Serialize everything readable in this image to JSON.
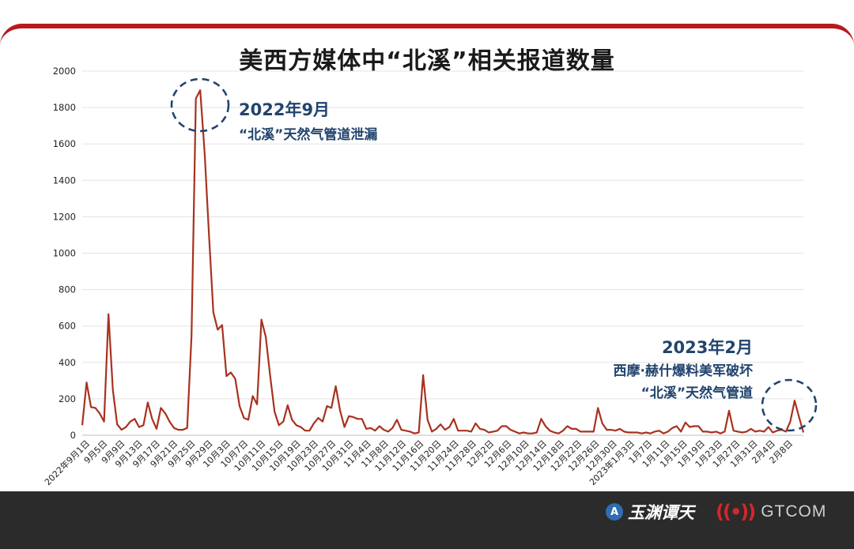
{
  "header": {
    "title": "美西方媒体中“北溪”相关报道数量"
  },
  "annotations": {
    "a1_line1": "2022年9月",
    "a1_line2": "“北溪”天然气管道泄漏",
    "a2_line1": "2023年2月",
    "a2_line2": "西摩·赫什爆料美军破坏",
    "a2_line3": "“北溪”天然气管道"
  },
  "footer": {
    "logo1_mark": "A",
    "logo1_text": "玉渊谭天",
    "logo2_mark": "((•))",
    "logo2_text": "GTCOM"
  },
  "colors": {
    "line": "#a8321f",
    "accent": "#b8191d",
    "annotation": "#22446e",
    "footer": "#2b2b2b"
  },
  "chart_data": {
    "type": "line",
    "title": "美西方媒体中“北溪”相关报道数量",
    "xlabel": "",
    "ylabel": "",
    "ylim": [
      0,
      2000
    ],
    "yticks": [
      0,
      200,
      400,
      600,
      800,
      1000,
      1200,
      1400,
      1600,
      1800,
      2000
    ],
    "grid": true,
    "xtick_labels": [
      "2022年9月1日",
      "9月5日",
      "9月9日",
      "9月13日",
      "9月17日",
      "9月21日",
      "9月25日",
      "9月29日",
      "10月3日",
      "10月7日",
      "10月11日",
      "10月15日",
      "10月19日",
      "10月23日",
      "10月27日",
      "10月31日",
      "11月4日",
      "11月8日",
      "11月12日",
      "11月16日",
      "11月20日",
      "11月24日",
      "11月28日",
      "12月2日",
      "12月6日",
      "12月10日",
      "12月14日",
      "12月18日",
      "12月22日",
      "12月26日",
      "12月30日",
      "2023年1月3日",
      "1月7日",
      "1月11日",
      "1月15日",
      "1月19日",
      "1月23日",
      "1月27日",
      "1月31日",
      "2月4日",
      "2月8日"
    ],
    "series": [
      {
        "values": [
          55,
          290,
          155,
          150,
          120,
          75,
          665,
          250,
          60,
          30,
          45,
          75,
          90,
          45,
          55,
          180,
          90,
          35,
          150,
          120,
          75,
          40,
          30,
          30,
          40,
          545,
          1850,
          1895,
          1550,
          1100,
          675,
          580,
          605,
          325,
          345,
          310,
          160,
          95,
          85,
          215,
          170,
          635,
          540,
          325,
          130,
          55,
          75,
          165,
          85,
          55,
          45,
          25,
          25,
          65,
          95,
          75,
          160,
          150,
          270,
          135,
          45,
          105,
          100,
          90,
          90,
          35,
          40,
          25,
          50,
          30,
          20,
          40,
          85,
          30,
          25,
          20,
          10,
          15,
          330,
          85,
          20,
          35,
          60,
          30,
          45,
          90,
          25,
          25,
          25,
          20,
          65,
          35,
          30,
          15,
          20,
          25,
          50,
          50,
          30,
          20,
          10,
          15,
          10,
          10,
          15,
          90,
          50,
          25,
          15,
          10,
          25,
          50,
          35,
          35,
          20,
          20,
          20,
          20,
          150,
          65,
          30,
          30,
          25,
          35,
          20,
          15,
          15,
          15,
          10,
          15,
          10,
          20,
          25,
          10,
          20,
          40,
          50,
          20,
          70,
          45,
          50,
          50,
          20,
          20,
          15,
          20,
          10,
          20,
          135,
          25,
          20,
          15,
          20,
          35,
          20,
          25,
          20,
          45,
          15,
          25,
          30,
          20,
          75,
          190,
          100,
          15
        ]
      }
    ]
  }
}
